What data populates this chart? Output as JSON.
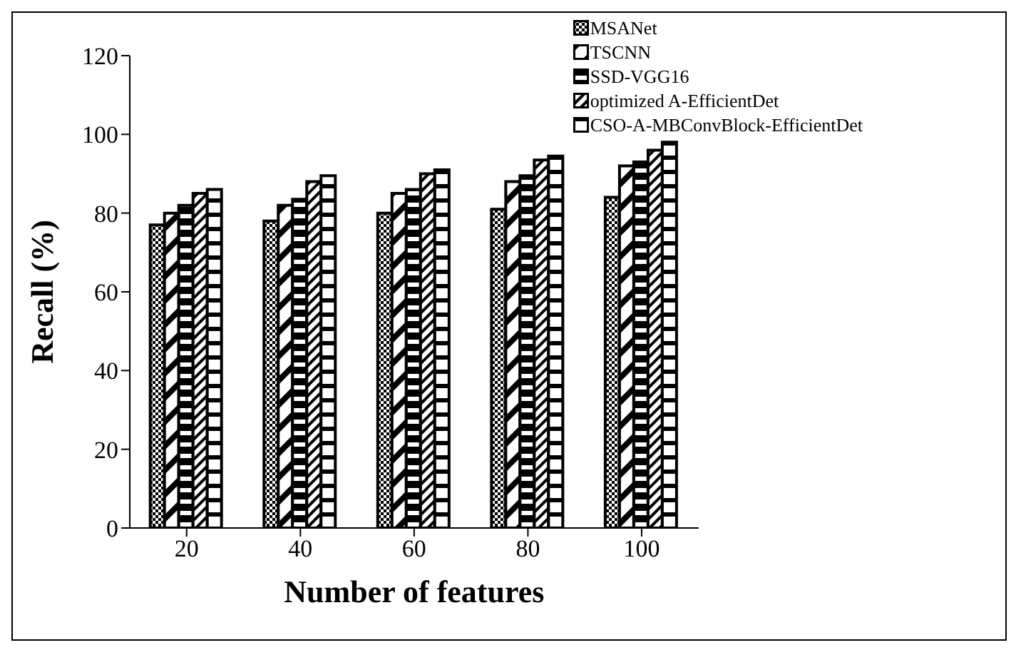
{
  "chart_data": {
    "type": "bar",
    "xlabel": "Number of features",
    "ylabel": "Recall (%)",
    "categories": [
      "20",
      "40",
      "60",
      "80",
      "100"
    ],
    "series": [
      {
        "name": "MSANet",
        "color": "#000000",
        "values": [
          77,
          78,
          80,
          81,
          84
        ]
      },
      {
        "name": "TSCNN",
        "color": "#000000",
        "values": [
          80,
          82,
          85,
          88,
          92
        ]
      },
      {
        "name": "SSD-VGG16",
        "color": "#000000",
        "values": [
          82,
          83.5,
          86,
          89.5,
          93
        ]
      },
      {
        "name": "optimized A-EfficientDet",
        "color": "#000000",
        "values": [
          85,
          88,
          90,
          93.5,
          96
        ]
      },
      {
        "name": "CSO-A-MBConvBlock-EfficientDet",
        "color": "#000000",
        "values": [
          86,
          89.5,
          91,
          94.5,
          98
        ]
      }
    ],
    "ylim": [
      0,
      120
    ],
    "yticks": [
      0,
      20,
      40,
      60,
      80,
      100,
      120
    ],
    "grid": false,
    "legend": "top right"
  }
}
